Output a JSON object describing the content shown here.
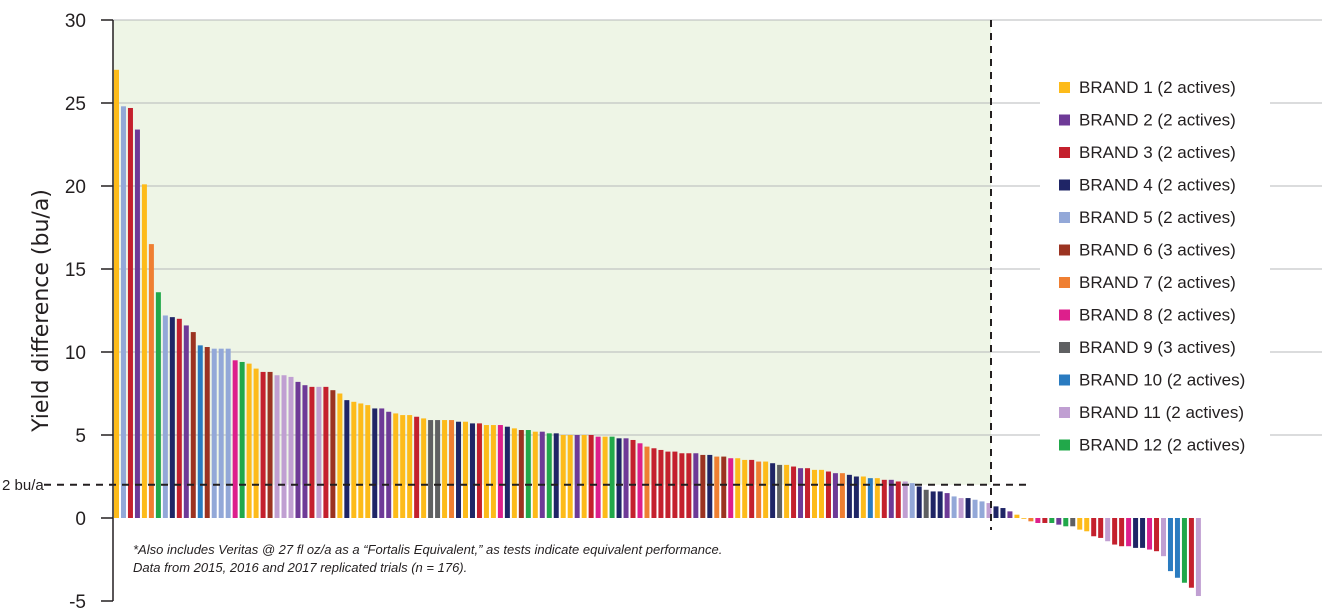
{
  "chart_data": {
    "type": "bar",
    "title": "",
    "xlabel": "",
    "ylabel": "Yield difference (bu/a)",
    "ylim": [
      -5,
      30
    ],
    "yticks": [
      "30",
      "25",
      "20",
      "15",
      "10",
      "5",
      "0",
      "-5"
    ],
    "reference_line": {
      "label": "2 bu/a",
      "value": 2
    },
    "legend_position": "right",
    "legend": [
      {
        "name": "BRAND 1 (2 actives)",
        "color": "#fdbb1a"
      },
      {
        "name": "BRAND 2 (2 actives)",
        "color": "#6e3a97"
      },
      {
        "name": "BRAND 3 (2 actives)",
        "color": "#c4202d"
      },
      {
        "name": "BRAND 4 (2 actives)",
        "color": "#1f2566"
      },
      {
        "name": "BRAND 5 (2 actives)",
        "color": "#93a8d8"
      },
      {
        "name": "BRAND 6 (3 actives)",
        "color": "#9b3321"
      },
      {
        "name": "BRAND 7 (2 actives)",
        "color": "#ef7f32"
      },
      {
        "name": "BRAND 8 (2 actives)",
        "color": "#dd1f8c"
      },
      {
        "name": "BRAND 9 (3 actives)",
        "color": "#5f6062"
      },
      {
        "name": "BRAND 10 (2 actives)",
        "color": "#2a7bc0"
      },
      {
        "name": "BRAND 11 (2 actives)",
        "color": "#c09fd2"
      },
      {
        "name": "BRAND 12 (2 actives)",
        "color": "#21a84a"
      }
    ],
    "bars": [
      {
        "brand": 1,
        "v": 27.0
      },
      {
        "brand": 5,
        "v": 24.8
      },
      {
        "brand": 3,
        "v": 24.7
      },
      {
        "brand": 2,
        "v": 23.4
      },
      {
        "brand": 1,
        "v": 20.1
      },
      {
        "brand": 7,
        "v": 16.5
      },
      {
        "brand": 12,
        "v": 13.6
      },
      {
        "brand": 5,
        "v": 12.2
      },
      {
        "brand": 4,
        "v": 12.1
      },
      {
        "brand": 3,
        "v": 12.0
      },
      {
        "brand": 2,
        "v": 11.6
      },
      {
        "brand": 6,
        "v": 11.2
      },
      {
        "brand": 10,
        "v": 10.4
      },
      {
        "brand": 6,
        "v": 10.3
      },
      {
        "brand": 5,
        "v": 10.2
      },
      {
        "brand": 5,
        "v": 10.2
      },
      {
        "brand": 5,
        "v": 10.2
      },
      {
        "brand": 8,
        "v": 9.5
      },
      {
        "brand": 12,
        "v": 9.4
      },
      {
        "brand": 1,
        "v": 9.3
      },
      {
        "brand": 1,
        "v": 9.0
      },
      {
        "brand": 3,
        "v": 8.8
      },
      {
        "brand": 6,
        "v": 8.8
      },
      {
        "brand": 11,
        "v": 8.6
      },
      {
        "brand": 11,
        "v": 8.6
      },
      {
        "brand": 11,
        "v": 8.5
      },
      {
        "brand": 2,
        "v": 8.2
      },
      {
        "brand": 2,
        "v": 8.0
      },
      {
        "brand": 3,
        "v": 7.9
      },
      {
        "brand": 11,
        "v": 7.9
      },
      {
        "brand": 3,
        "v": 7.9
      },
      {
        "brand": 6,
        "v": 7.7
      },
      {
        "brand": 1,
        "v": 7.5
      },
      {
        "brand": 4,
        "v": 7.1
      },
      {
        "brand": 1,
        "v": 7.0
      },
      {
        "brand": 1,
        "v": 6.9
      },
      {
        "brand": 1,
        "v": 6.8
      },
      {
        "brand": 4,
        "v": 6.6
      },
      {
        "brand": 2,
        "v": 6.6
      },
      {
        "brand": 2,
        "v": 6.4
      },
      {
        "brand": 1,
        "v": 6.3
      },
      {
        "brand": 1,
        "v": 6.2
      },
      {
        "brand": 1,
        "v": 6.2
      },
      {
        "brand": 3,
        "v": 6.1
      },
      {
        "brand": 1,
        "v": 6.0
      },
      {
        "brand": 9,
        "v": 5.9
      },
      {
        "brand": 9,
        "v": 5.9
      },
      {
        "brand": 1,
        "v": 5.9
      },
      {
        "brand": 7,
        "v": 5.9
      },
      {
        "brand": 4,
        "v": 5.8
      },
      {
        "brand": 1,
        "v": 5.8
      },
      {
        "brand": 4,
        "v": 5.7
      },
      {
        "brand": 3,
        "v": 5.7
      },
      {
        "brand": 1,
        "v": 5.6
      },
      {
        "brand": 1,
        "v": 5.6
      },
      {
        "brand": 8,
        "v": 5.6
      },
      {
        "brand": 4,
        "v": 5.5
      },
      {
        "brand": 1,
        "v": 5.4
      },
      {
        "brand": 6,
        "v": 5.3
      },
      {
        "brand": 12,
        "v": 5.3
      },
      {
        "brand": 1,
        "v": 5.2
      },
      {
        "brand": 2,
        "v": 5.2
      },
      {
        "brand": 12,
        "v": 5.1
      },
      {
        "brand": 4,
        "v": 5.1
      },
      {
        "brand": 1,
        "v": 5.0
      },
      {
        "brand": 1,
        "v": 5.0
      },
      {
        "brand": 2,
        "v": 5.0
      },
      {
        "brand": 1,
        "v": 5.0
      },
      {
        "brand": 3,
        "v": 5.0
      },
      {
        "brand": 8,
        "v": 4.9
      },
      {
        "brand": 1,
        "v": 4.9
      },
      {
        "brand": 12,
        "v": 4.9
      },
      {
        "brand": 4,
        "v": 4.8
      },
      {
        "brand": 2,
        "v": 4.8
      },
      {
        "brand": 3,
        "v": 4.7
      },
      {
        "brand": 8,
        "v": 4.5
      },
      {
        "brand": 7,
        "v": 4.3
      },
      {
        "brand": 3,
        "v": 4.2
      },
      {
        "brand": 3,
        "v": 4.1
      },
      {
        "brand": 3,
        "v": 4.0
      },
      {
        "brand": 3,
        "v": 4.0
      },
      {
        "brand": 3,
        "v": 3.9
      },
      {
        "brand": 3,
        "v": 3.9
      },
      {
        "brand": 2,
        "v": 3.9
      },
      {
        "brand": 6,
        "v": 3.8
      },
      {
        "brand": 4,
        "v": 3.8
      },
      {
        "brand": 7,
        "v": 3.7
      },
      {
        "brand": 6,
        "v": 3.7
      },
      {
        "brand": 8,
        "v": 3.6
      },
      {
        "brand": 1,
        "v": 3.6
      },
      {
        "brand": 1,
        "v": 3.5
      },
      {
        "brand": 3,
        "v": 3.5
      },
      {
        "brand": 7,
        "v": 3.4
      },
      {
        "brand": 1,
        "v": 3.4
      },
      {
        "brand": 4,
        "v": 3.3
      },
      {
        "brand": 9,
        "v": 3.2
      },
      {
        "brand": 1,
        "v": 3.2
      },
      {
        "brand": 3,
        "v": 3.1
      },
      {
        "brand": 2,
        "v": 3.0
      },
      {
        "brand": 3,
        "v": 3.0
      },
      {
        "brand": 1,
        "v": 2.9
      },
      {
        "brand": 1,
        "v": 2.9
      },
      {
        "brand": 3,
        "v": 2.8
      },
      {
        "brand": 2,
        "v": 2.7
      },
      {
        "brand": 7,
        "v": 2.7
      },
      {
        "brand": 4,
        "v": 2.6
      },
      {
        "brand": 4,
        "v": 2.5
      },
      {
        "brand": 1,
        "v": 2.5
      },
      {
        "brand": 10,
        "v": 2.4
      },
      {
        "brand": 1,
        "v": 2.4
      },
      {
        "brand": 3,
        "v": 2.3
      },
      {
        "brand": 2,
        "v": 2.3
      },
      {
        "brand": 3,
        "v": 2.2
      },
      {
        "brand": 11,
        "v": 2.2
      },
      {
        "brand": 5,
        "v": 2.1
      },
      {
        "brand": 4,
        "v": 1.9
      },
      {
        "brand": 9,
        "v": 1.7
      },
      {
        "brand": 4,
        "v": 1.6
      },
      {
        "brand": 4,
        "v": 1.6
      },
      {
        "brand": 2,
        "v": 1.5
      },
      {
        "brand": 5,
        "v": 1.3
      },
      {
        "brand": 11,
        "v": 1.2
      },
      {
        "brand": 4,
        "v": 1.2
      },
      {
        "brand": 5,
        "v": 1.1
      },
      {
        "brand": 5,
        "v": 1.0
      },
      {
        "brand": 11,
        "v": 0.9
      },
      {
        "brand": 4,
        "v": 0.7
      },
      {
        "brand": 4,
        "v": 0.6
      },
      {
        "brand": 2,
        "v": 0.4
      },
      {
        "brand": 1,
        "v": 0.2
      },
      {
        "brand": 1,
        "v": 0.0
      },
      {
        "brand": 7,
        "v": -0.2
      },
      {
        "brand": 8,
        "v": -0.3
      },
      {
        "brand": 3,
        "v": -0.3
      },
      {
        "brand": 12,
        "v": -0.3
      },
      {
        "brand": 2,
        "v": -0.4
      },
      {
        "brand": 12,
        "v": -0.5
      },
      {
        "brand": 9,
        "v": -0.5
      },
      {
        "brand": 1,
        "v": -0.7
      },
      {
        "brand": 1,
        "v": -0.8
      },
      {
        "brand": 3,
        "v": -1.1
      },
      {
        "brand": 3,
        "v": -1.2
      },
      {
        "brand": 11,
        "v": -1.4
      },
      {
        "brand": 3,
        "v": -1.6
      },
      {
        "brand": 3,
        "v": -1.7
      },
      {
        "brand": 8,
        "v": -1.7
      },
      {
        "brand": 4,
        "v": -1.8
      },
      {
        "brand": 4,
        "v": -1.8
      },
      {
        "brand": 8,
        "v": -1.9
      },
      {
        "brand": 3,
        "v": -2.0
      },
      {
        "brand": 11,
        "v": -2.3
      },
      {
        "brand": 10,
        "v": -3.2
      },
      {
        "brand": 10,
        "v": -3.6
      },
      {
        "brand": 12,
        "v": -3.9
      },
      {
        "brand": 3,
        "v": -4.2
      },
      {
        "brand": 11,
        "v": -4.7
      }
    ],
    "footnote": [
      "*Also includes Veritas @ 27 fl oz/a as a “Fortalis Equivalent,” as tests indicate equivalent performance.",
      "Data from 2015, 2016 and 2017 replicated trials (n = 176)."
    ]
  }
}
